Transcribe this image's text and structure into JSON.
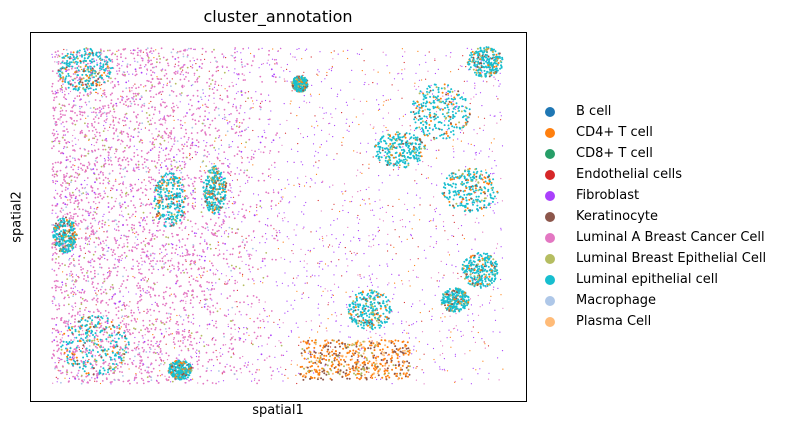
{
  "chart_data": {
    "type": "scatter",
    "title": "cluster_annotation",
    "xlabel": "spatial1",
    "ylabel": "spatial2",
    "xticks": [],
    "yticks": [],
    "grid": false,
    "legend_position": "right",
    "categories": [
      {
        "name": "B cell",
        "color": "#1f77b4"
      },
      {
        "name": "CD4+ T cell",
        "color": "#ff7f0e"
      },
      {
        "name": "CD8+ T cell",
        "color": "#279e68"
      },
      {
        "name": "Endothelial cells",
        "color": "#d62728"
      },
      {
        "name": "Fibroblast",
        "color": "#aa40fc"
      },
      {
        "name": "Keratinocyte",
        "color": "#8c564b"
      },
      {
        "name": "Luminal A Breast Cancer Cell",
        "color": "#e377c2"
      },
      {
        "name": "Luminal Breast Epithelial Cell",
        "color": "#b5bd61"
      },
      {
        "name": "Luminal epithelial cell",
        "color": "#17becf"
      },
      {
        "name": "Macrophage",
        "color": "#aec7e8"
      },
      {
        "name": "Plasma Cell",
        "color": "#ffbb78"
      }
    ]
  }
}
